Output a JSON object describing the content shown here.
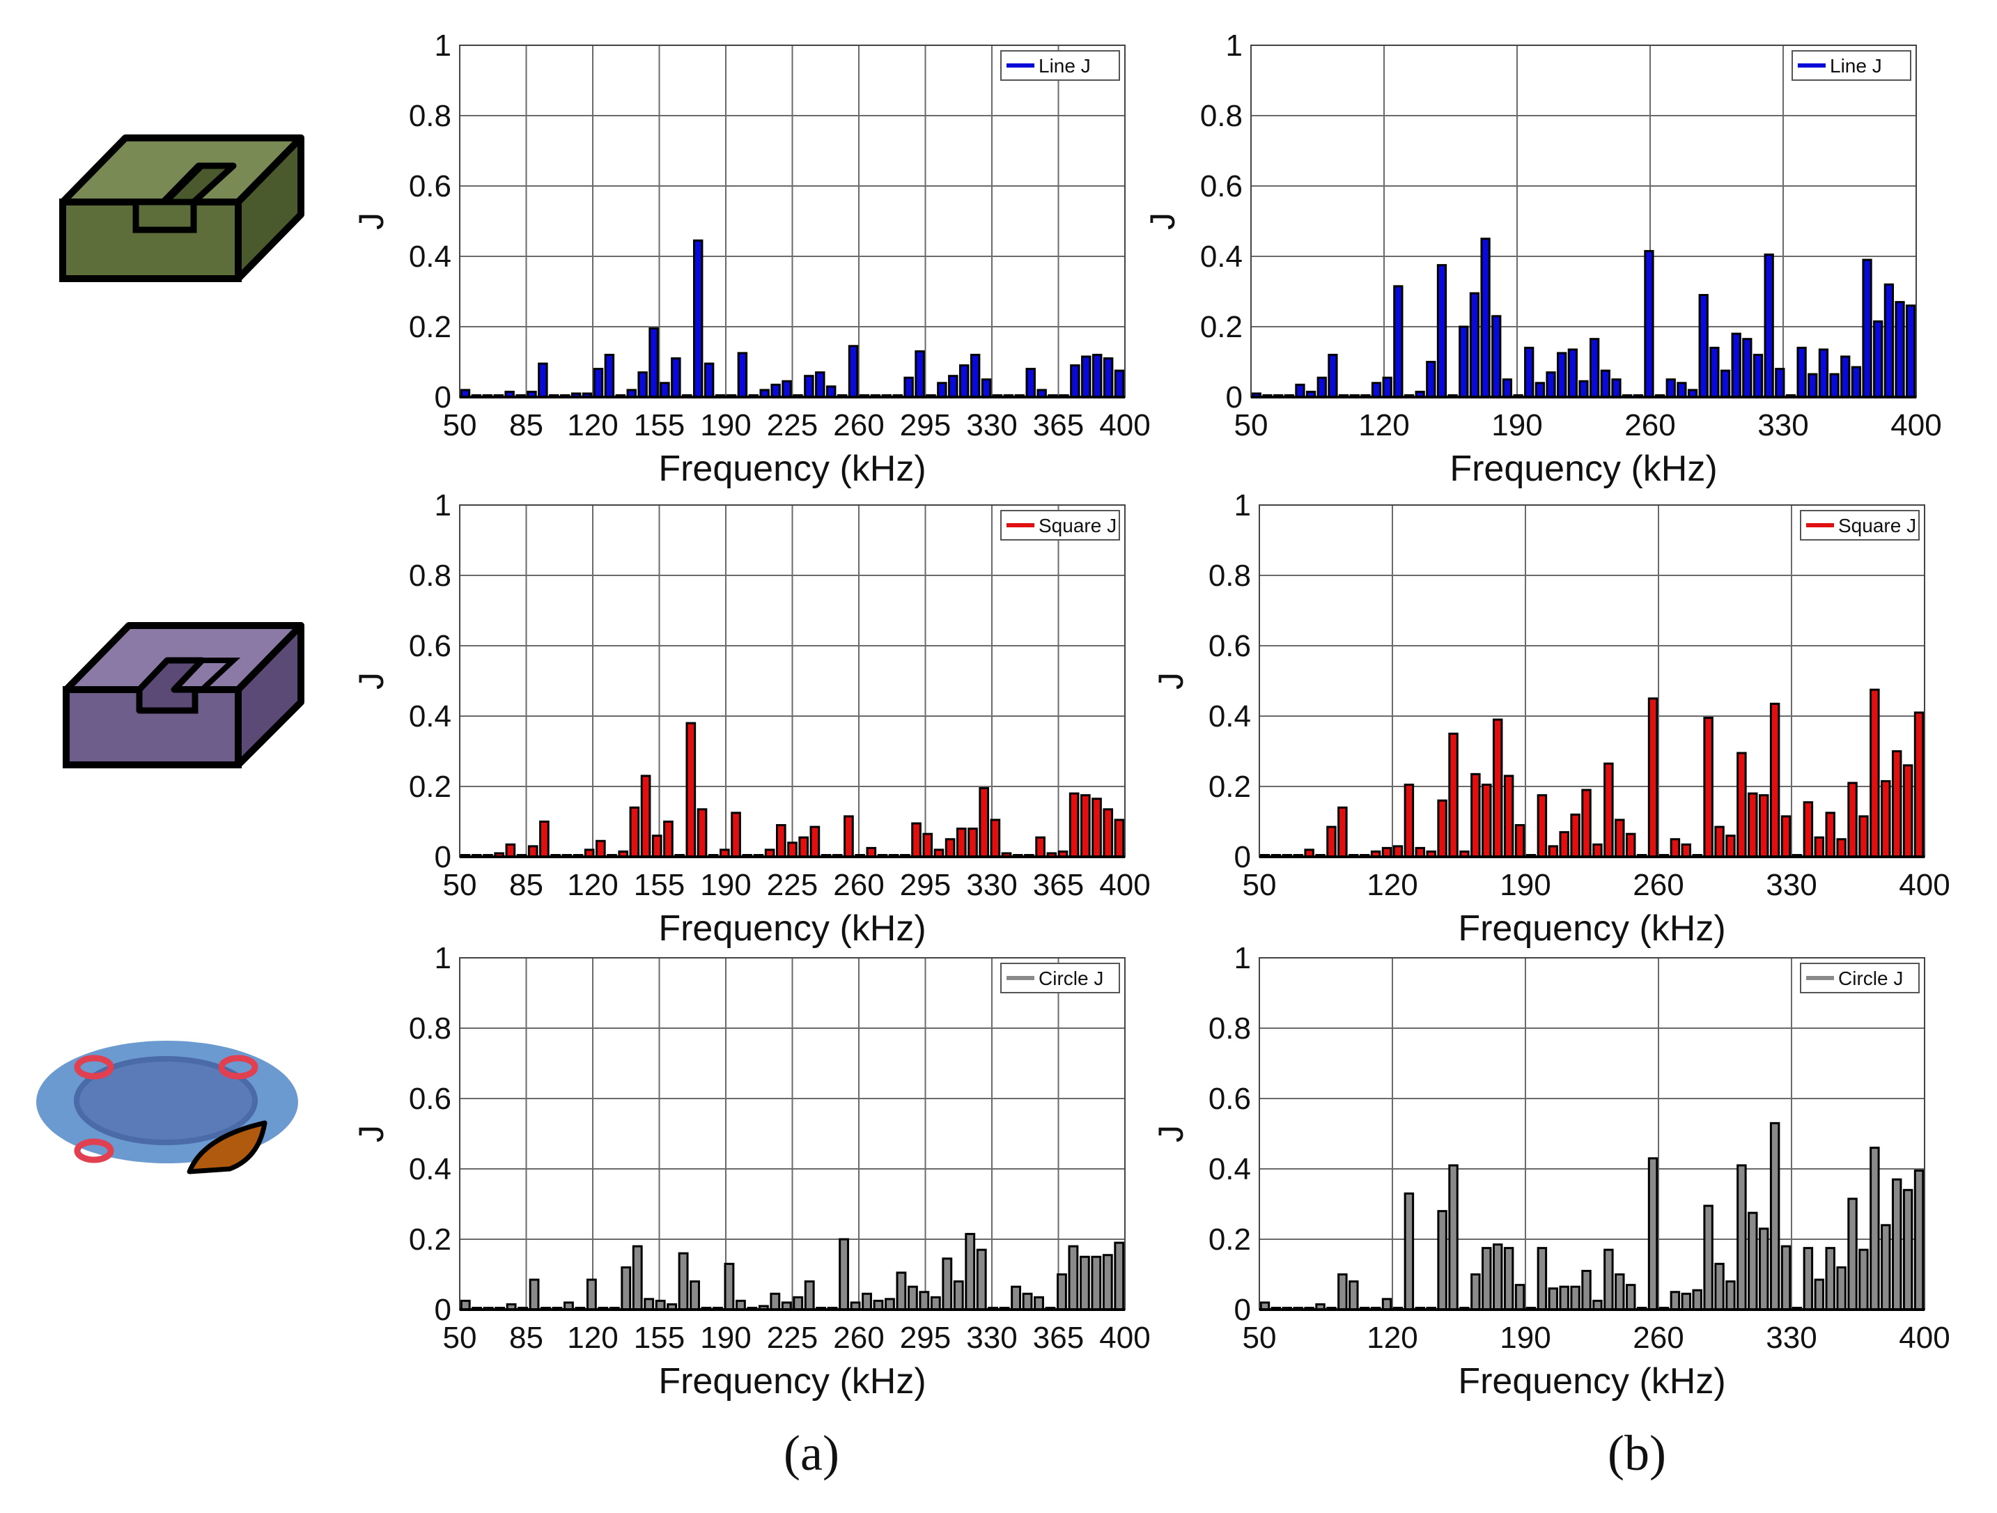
{
  "figure": {
    "label_a": "(a)",
    "label_b": "(b)",
    "colors": {
      "line": "#0a0ad8",
      "square": "#e01010",
      "circle": "#8a8a8a"
    },
    "icons": [
      "line-slot-block-icon",
      "square-slot-block-icon",
      "circle-plate-icon"
    ]
  },
  "chart_data": [
    {
      "type": "bar",
      "title": "",
      "legend": "Line J",
      "legend_position": "top-right",
      "xlabel": "Frequency (kHz)",
      "ylabel": "J",
      "xlim": [
        50,
        400
      ],
      "ylim": [
        0,
        1
      ],
      "xticks": [
        "50",
        "85",
        "120",
        "155",
        "190",
        "225",
        "260",
        "295",
        "330",
        "365",
        "400"
      ],
      "yticks": [
        "0",
        "0.2",
        "0.4",
        "0.6",
        "0.8",
        "1"
      ],
      "grid": true,
      "color": "#0a0ad8",
      "values": [
        0.02,
        0.005,
        0.005,
        0.005,
        0.015,
        0.005,
        0.015,
        0.095,
        0.005,
        0.005,
        0.01,
        0.01,
        0.08,
        0.12,
        0.005,
        0.02,
        0.07,
        0.195,
        0.04,
        0.11,
        0.005,
        0.445,
        0.095,
        0.005,
        0.005,
        0.125,
        0.005,
        0.02,
        0.035,
        0.045,
        0.005,
        0.06,
        0.07,
        0.03,
        0.005,
        0.145,
        0.005,
        0.005,
        0.005,
        0.005,
        0.055,
        0.13,
        0.005,
        0.04,
        0.06,
        0.09,
        0.12,
        0.05,
        0.005,
        0.005,
        0.005,
        0.08,
        0.02,
        0.005,
        0.005,
        0.09,
        0.115,
        0.12,
        0.11,
        0.075
      ]
    },
    {
      "type": "bar",
      "title": "",
      "legend": "Line J",
      "legend_position": "top-right",
      "xlabel": "Frequency (kHz)",
      "ylabel": "J",
      "xlim": [
        50,
        400
      ],
      "ylim": [
        0,
        1
      ],
      "xticks": [
        "50",
        "120",
        "190",
        "260",
        "330",
        "400"
      ],
      "yticks": [
        "0",
        "0.2",
        "0.4",
        "0.6",
        "0.8",
        "1"
      ],
      "grid": true,
      "color": "#0a0ad8",
      "values": [
        0.01,
        0.005,
        0.005,
        0.005,
        0.035,
        0.015,
        0.055,
        0.12,
        0.005,
        0.005,
        0.005,
        0.04,
        0.055,
        0.315,
        0.005,
        0.015,
        0.1,
        0.375,
        0.005,
        0.2,
        0.295,
        0.45,
        0.23,
        0.05,
        0.005,
        0.14,
        0.04,
        0.07,
        0.125,
        0.135,
        0.045,
        0.165,
        0.075,
        0.05,
        0.005,
        0.005,
        0.415,
        0.005,
        0.05,
        0.04,
        0.02,
        0.29,
        0.14,
        0.075,
        0.18,
        0.165,
        0.12,
        0.405,
        0.08,
        0.005,
        0.14,
        0.065,
        0.135,
        0.065,
        0.115,
        0.085,
        0.39,
        0.215,
        0.32,
        0.27,
        0.26
      ]
    },
    {
      "type": "bar",
      "title": "",
      "legend": "Square J",
      "legend_position": "top-right",
      "xlabel": "Frequency (kHz)",
      "ylabel": "J",
      "xlim": [
        50,
        400
      ],
      "ylim": [
        0,
        1
      ],
      "xticks": [
        "50",
        "85",
        "120",
        "155",
        "190",
        "225",
        "260",
        "295",
        "330",
        "365",
        "400"
      ],
      "yticks": [
        "0",
        "0.2",
        "0.4",
        "0.6",
        "0.8",
        "1"
      ],
      "grid": true,
      "color": "#e01010",
      "values": [
        0.005,
        0.005,
        0.005,
        0.01,
        0.035,
        0.005,
        0.03,
        0.1,
        0.005,
        0.005,
        0.005,
        0.02,
        0.045,
        0.005,
        0.015,
        0.14,
        0.23,
        0.06,
        0.1,
        0.005,
        0.38,
        0.135,
        0.005,
        0.02,
        0.125,
        0.005,
        0.005,
        0.02,
        0.09,
        0.04,
        0.055,
        0.085,
        0.005,
        0.005,
        0.115,
        0.005,
        0.025,
        0.005,
        0.005,
        0.005,
        0.095,
        0.065,
        0.02,
        0.05,
        0.08,
        0.08,
        0.195,
        0.105,
        0.01,
        0.005,
        0.005,
        0.055,
        0.01,
        0.015,
        0.18,
        0.175,
        0.165,
        0.135,
        0.105
      ]
    },
    {
      "type": "bar",
      "title": "",
      "legend": "Square J",
      "legend_position": "top-right",
      "xlabel": "Frequency (kHz)",
      "ylabel": "J",
      "xlim": [
        50,
        400
      ],
      "ylim": [
        0,
        1
      ],
      "xticks": [
        "50",
        "120",
        "190",
        "260",
        "330",
        "400"
      ],
      "yticks": [
        "0",
        "0.2",
        "0.4",
        "0.6",
        "0.8",
        "1"
      ],
      "grid": true,
      "color": "#e01010",
      "values": [
        0.005,
        0.005,
        0.005,
        0.005,
        0.02,
        0.005,
        0.085,
        0.14,
        0.005,
        0.005,
        0.015,
        0.025,
        0.03,
        0.205,
        0.025,
        0.015,
        0.16,
        0.35,
        0.015,
        0.235,
        0.205,
        0.39,
        0.23,
        0.09,
        0.005,
        0.175,
        0.03,
        0.07,
        0.12,
        0.19,
        0.035,
        0.265,
        0.105,
        0.065,
        0.005,
        0.45,
        0.005,
        0.05,
        0.035,
        0.005,
        0.395,
        0.085,
        0.06,
        0.295,
        0.18,
        0.175,
        0.435,
        0.115,
        0.005,
        0.155,
        0.055,
        0.125,
        0.05,
        0.21,
        0.115,
        0.475,
        0.215,
        0.3,
        0.26,
        0.41
      ]
    },
    {
      "type": "bar",
      "title": "",
      "legend": "Circle J",
      "legend_position": "top-right",
      "xlabel": "Frequency (kHz)",
      "ylabel": "J",
      "xlim": [
        50,
        400
      ],
      "ylim": [
        0,
        1
      ],
      "xticks": [
        "50",
        "85",
        "120",
        "155",
        "190",
        "225",
        "260",
        "295",
        "330",
        "365",
        "400"
      ],
      "yticks": [
        "0",
        "0.2",
        "0.4",
        "0.6",
        "0.8",
        "1"
      ],
      "grid": true,
      "color": "#8a8a8a",
      "values": [
        0.025,
        0.005,
        0.005,
        0.005,
        0.015,
        0.005,
        0.085,
        0.005,
        0.005,
        0.02,
        0.005,
        0.085,
        0.005,
        0.005,
        0.12,
        0.18,
        0.03,
        0.025,
        0.015,
        0.16,
        0.08,
        0.005,
        0.005,
        0.13,
        0.025,
        0.005,
        0.01,
        0.045,
        0.02,
        0.035,
        0.08,
        0.005,
        0.005,
        0.2,
        0.02,
        0.045,
        0.025,
        0.03,
        0.105,
        0.065,
        0.05,
        0.035,
        0.145,
        0.08,
        0.215,
        0.17,
        0.005,
        0.005,
        0.065,
        0.045,
        0.035,
        0.005,
        0.1,
        0.18,
        0.15,
        0.15,
        0.155,
        0.19
      ]
    },
    {
      "type": "bar",
      "title": "",
      "legend": "Circle J",
      "legend_position": "top-right",
      "xlabel": "Frequency (kHz)",
      "ylabel": "J",
      "xlim": [
        50,
        400
      ],
      "ylim": [
        0,
        1
      ],
      "xticks": [
        "50",
        "120",
        "190",
        "260",
        "330",
        "400"
      ],
      "yticks": [
        "0",
        "0.2",
        "0.4",
        "0.6",
        "0.8",
        "1"
      ],
      "grid": true,
      "color": "#8a8a8a",
      "values": [
        0.02,
        0.005,
        0.005,
        0.005,
        0.005,
        0.015,
        0.005,
        0.1,
        0.08,
        0.005,
        0.005,
        0.03,
        0.005,
        0.33,
        0.005,
        0.005,
        0.28,
        0.41,
        0.005,
        0.1,
        0.175,
        0.185,
        0.175,
        0.07,
        0.005,
        0.175,
        0.06,
        0.065,
        0.065,
        0.11,
        0.025,
        0.17,
        0.1,
        0.07,
        0.005,
        0.43,
        0.005,
        0.05,
        0.045,
        0.055,
        0.295,
        0.13,
        0.08,
        0.41,
        0.275,
        0.23,
        0.53,
        0.18,
        0.005,
        0.175,
        0.085,
        0.175,
        0.12,
        0.315,
        0.17,
        0.46,
        0.24,
        0.37,
        0.34,
        0.395
      ]
    }
  ]
}
